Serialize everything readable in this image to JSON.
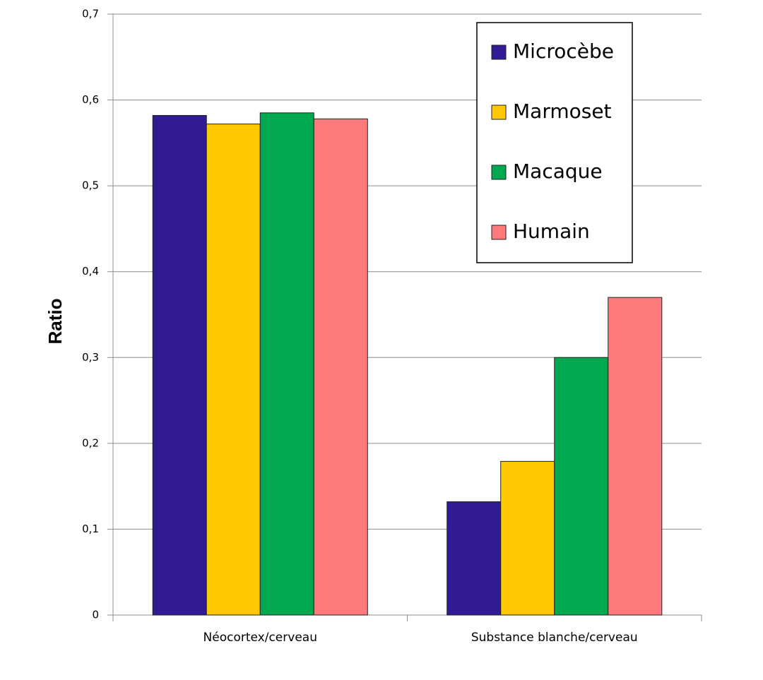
{
  "chart_data": {
    "type": "bar",
    "y_label": "Ratio",
    "categories": [
      "Néocortex/cerveau",
      "Substance blanche/cerveau"
    ],
    "series": [
      {
        "name": "Microcèbe",
        "color": "#321a94",
        "values": [
          0.582,
          0.132
        ]
      },
      {
        "name": "Marmoset",
        "color": "#ffc800",
        "values": [
          0.572,
          0.179
        ]
      },
      {
        "name": "Macaque",
        "color": "#00a84f",
        "values": [
          0.585,
          0.3
        ]
      },
      {
        "name": "Humain",
        "color": "#ff7b7b",
        "values": [
          0.578,
          0.37
        ]
      }
    ],
    "ylim": [
      0,
      0.7
    ],
    "yticks": [
      0,
      {
        "value": 0.1,
        "label": "0,1"
      },
      {
        "value": 0.2,
        "label": "0,2"
      },
      {
        "value": 0.3,
        "label": "0,3"
      },
      {
        "value": 0.4,
        "label": "0,4"
      },
      {
        "value": 0.5,
        "label": "0,5"
      },
      {
        "value": 0.6,
        "label": "0,6"
      },
      {
        "value": 0.7,
        "label": "0,7"
      }
    ],
    "grid": true,
    "legend": "top-right"
  }
}
